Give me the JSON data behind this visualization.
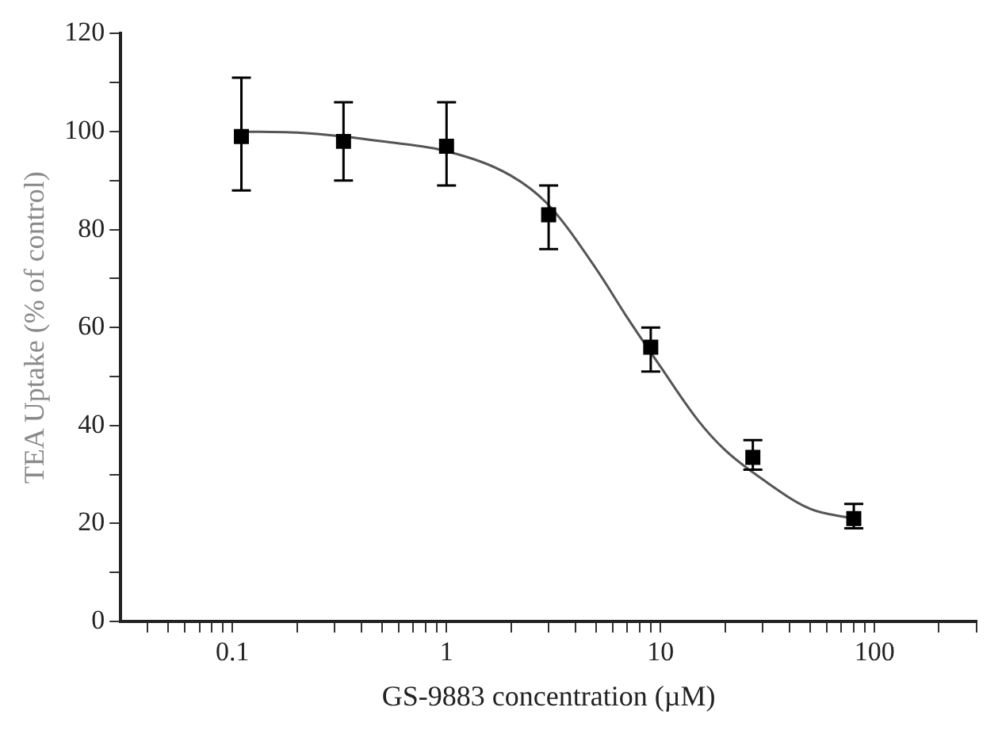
{
  "chart_data": {
    "type": "scatter",
    "xlabel": "GS-9883 concentration (µM)",
    "ylabel": "TEA Uptake (% of control)",
    "x": [
      0.11,
      0.33,
      1,
      3,
      9,
      27,
      80
    ],
    "series": [
      {
        "type": "scatter",
        "color": "#000000",
        "values": [
          99,
          98,
          97,
          83,
          56,
          33.5,
          21
        ],
        "errors": [
          [
            88,
            111
          ],
          [
            90,
            106
          ],
          [
            89,
            106
          ],
          [
            76,
            89
          ],
          [
            51,
            60
          ],
          [
            31,
            37
          ],
          [
            19,
            24
          ]
        ]
      },
      {
        "type": "line",
        "color": "#555555",
        "marker": "none",
        "x": [
          0.11,
          0.2,
          0.33,
          0.5,
          1,
          2,
          3,
          5,
          7,
          10,
          15,
          20,
          30,
          50,
          80
        ],
        "values": [
          100,
          99.8,
          99,
          98,
          96,
          91,
          85,
          72,
          62,
          52,
          41,
          35,
          29,
          23,
          21
        ]
      }
    ],
    "marker": "square",
    "grid": false,
    "legend": false,
    "xlim": [
      0.03,
      300
    ],
    "xticks": [
      {
        "value": 0.04,
        "label": null
      },
      {
        "value": 0.05,
        "label": null
      },
      {
        "value": 0.06,
        "label": null
      },
      {
        "value": 0.07,
        "label": null
      },
      {
        "value": 0.08,
        "label": null
      },
      {
        "value": 0.09,
        "label": null
      },
      0.1,
      {
        "value": 0.2,
        "label": null
      },
      {
        "value": 0.3,
        "label": null
      },
      {
        "value": 0.4,
        "label": null
      },
      {
        "value": 0.5,
        "label": null
      },
      {
        "value": 0.6,
        "label": null
      },
      {
        "value": 0.7,
        "label": null
      },
      {
        "value": 0.8,
        "label": null
      },
      {
        "value": 0.9,
        "label": null
      },
      1,
      {
        "value": 2,
        "label": null
      },
      {
        "value": 3,
        "label": null
      },
      {
        "value": 4,
        "label": null
      },
      {
        "value": 5,
        "label": null
      },
      {
        "value": 6,
        "label": null
      },
      {
        "value": 7,
        "label": null
      },
      {
        "value": 8,
        "label": null
      },
      {
        "value": 9,
        "label": null
      },
      10,
      {
        "value": 20,
        "label": null
      },
      {
        "value": 30,
        "label": null
      },
      {
        "value": 40,
        "label": null
      },
      {
        "value": 50,
        "label": null
      },
      {
        "value": 60,
        "label": null
      },
      {
        "value": 70,
        "label": null
      },
      {
        "value": 80,
        "label": null
      },
      {
        "value": 90,
        "label": null
      },
      100,
      {
        "value": 200,
        "label": null
      },
      {
        "value": 300,
        "label": null
      }
    ],
    "log": "x",
    "ylim": [
      0,
      120
    ],
    "yticks": [
      0,
      {
        "value": 10,
        "label": null
      },
      20,
      {
        "value": 30,
        "label": null
      },
      40,
      {
        "value": 50,
        "label": null
      },
      60,
      {
        "value": 70,
        "label": null
      },
      80,
      {
        "value": 90,
        "label": null
      },
      100,
      {
        "value": 110,
        "label": null
      },
      120
    ]
  }
}
